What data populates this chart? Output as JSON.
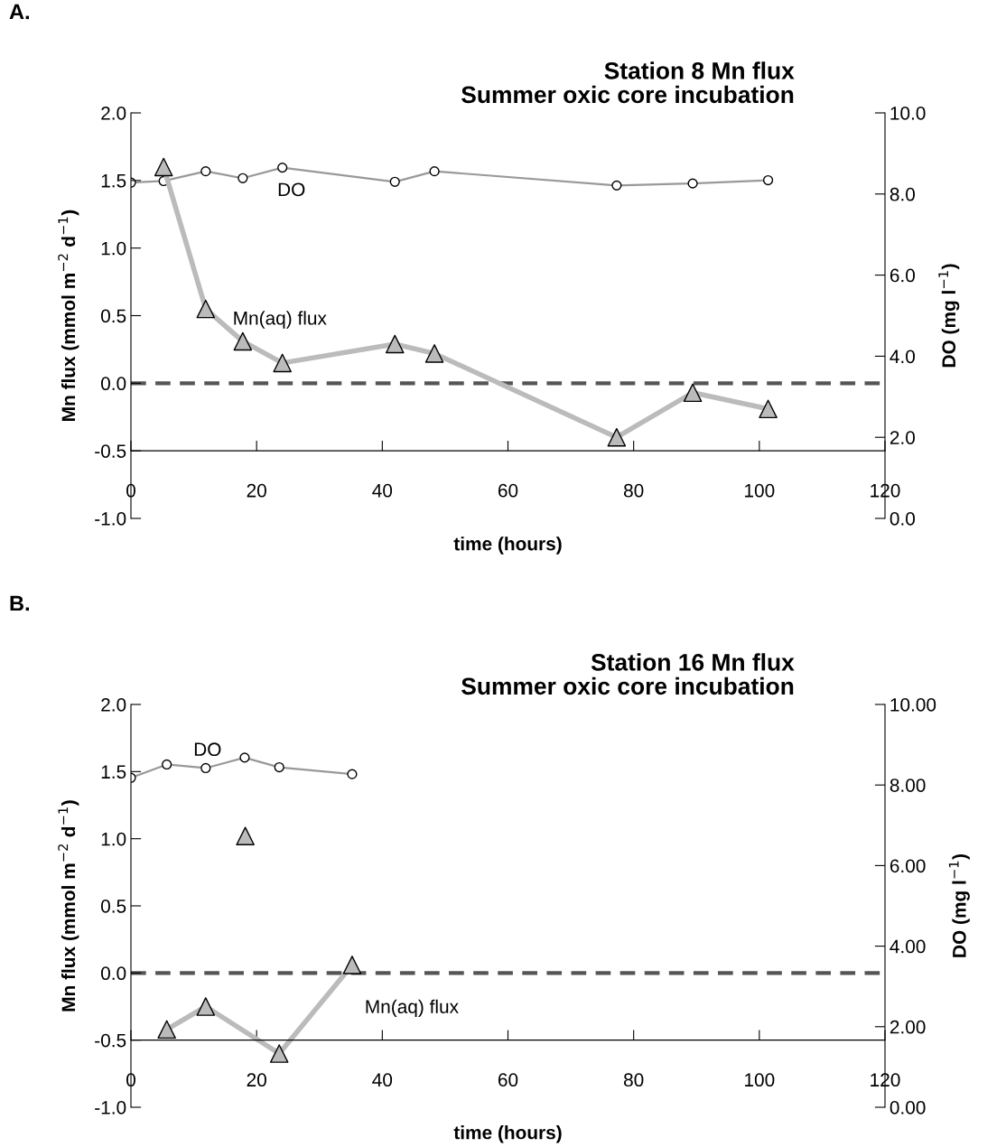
{
  "chart_data": [
    {
      "type": "line",
      "title": "Station 8 Mn flux\nSummer oxic core incubation",
      "xlabel": "time (hours)",
      "ylabel": "Mn flux (mmol m$^{−2}$ d$^{−1}$)",
      "y2label": "DO (mg l$^{−1}$)",
      "xlim": [
        0,
        120
      ],
      "xticks": [
        0,
        20,
        40,
        60,
        80,
        100,
        120
      ],
      "ylim": [
        -1.0,
        2.0
      ],
      "yticks": [
        {
          "value": -1.0,
          "label": "-1.0"
        },
        {
          "value": -0.5,
          "label": "-0.5"
        },
        {
          "value": 0.0,
          "label": "0.0"
        },
        {
          "value": 0.5,
          "label": "0.5"
        },
        {
          "value": 1.0,
          "label": "1.0"
        },
        {
          "value": 1.5,
          "label": "1.5"
        },
        {
          "value": 2.0,
          "label": "2.0"
        }
      ],
      "y2lim": [
        0,
        10
      ],
      "y2ticks": [
        {
          "value": 0,
          "label": "0.0"
        },
        {
          "value": 2,
          "label": "2.0"
        },
        {
          "value": 4,
          "label": "4.0"
        },
        {
          "value": 6,
          "label": "6.0"
        },
        {
          "value": 8,
          "label": "8.0"
        },
        {
          "value": 10,
          "label": "10.0"
        }
      ],
      "grid": false,
      "legend": false,
      "series": [
        {
          "name": "DO",
          "axis": "y2",
          "color": "#999999",
          "marker": "circle",
          "x": [
            0,
            5.2,
            11.9,
            17.8,
            24.1,
            42.0,
            48.3,
            77.3,
            89.4,
            101.4
          ],
          "values": [
            8.28,
            8.32,
            8.56,
            8.39,
            8.65,
            8.3,
            8.56,
            8.21,
            8.26,
            8.34
          ]
        },
        {
          "name": "Mn(aq) flux",
          "color": "#bbbbbb",
          "marker": "triangle",
          "x": [
            5.2,
            11.9,
            17.8,
            24.1,
            42.0,
            48.3,
            77.3,
            89.4,
            101.4
          ],
          "values": [
            1.6,
            0.55,
            0.31,
            0.15,
            0.29,
            0.22,
            -0.4,
            -0.07,
            -0.19
          ]
        }
      ],
      "ref_lines": [
        {
          "axis": "y",
          "value": 0,
          "color": "#555555",
          "line_style": "dashed"
        }
      ],
      "annotations": [
        "A."
      ]
    },
    {
      "type": "line",
      "title": "Station 16 Mn flux\nSummer oxic core incubation",
      "xlabel": "time (hours)",
      "ylabel": "Mn flux (mmol m$^{−2}$ d$^{−1}$)",
      "y2label": "DO (mg l$^{−1}$)",
      "xlim": [
        0,
        120
      ],
      "xticks": [
        0,
        20,
        40,
        60,
        80,
        100,
        120
      ],
      "ylim": [
        -1.0,
        2.0
      ],
      "yticks": [
        {
          "value": -1.0,
          "label": "-1.0"
        },
        {
          "value": -0.5,
          "label": "-0.5"
        },
        {
          "value": 0.0,
          "label": "0.0"
        },
        {
          "value": 0.5,
          "label": "0.5"
        },
        {
          "value": 1.0,
          "label": "1.0"
        },
        {
          "value": 1.5,
          "label": "1.5"
        },
        {
          "value": 2.0,
          "label": "2.0"
        }
      ],
      "y2lim": [
        0,
        10
      ],
      "y2ticks": [
        {
          "value": 0,
          "label": "0.00"
        },
        {
          "value": 2,
          "label": "2.00"
        },
        {
          "value": 4,
          "label": "4.00"
        },
        {
          "value": 6,
          "label": "6.00"
        },
        {
          "value": 8,
          "label": "8.00"
        },
        {
          "value": 10,
          "label": "10.00"
        }
      ],
      "grid": false,
      "legend": false,
      "series": [
        {
          "name": "DO",
          "axis": "y2",
          "color": "#999999",
          "marker": "circle",
          "x": [
            0,
            5.7,
            11.9,
            18.1,
            23.6,
            35.2
          ],
          "values": [
            8.18,
            8.51,
            8.42,
            8.68,
            8.44,
            8.27
          ]
        },
        {
          "name": "Mn(aq) flux",
          "color": "#bbbbbb",
          "marker": "triangle",
          "x": [
            5.7,
            11.9,
            23.6,
            35.2
          ],
          "values": [
            -0.42,
            -0.25,
            -0.6,
            0.06
          ]
        },
        {
          "type": "scatter",
          "color": "#bbbbbb",
          "marker": "triangle",
          "x": [
            18.2
          ],
          "values": [
            1.02
          ]
        }
      ],
      "ref_lines": [
        {
          "axis": "y",
          "value": 0,
          "color": "#555555",
          "line_style": "dashed"
        }
      ],
      "annotations": [
        "B."
      ]
    }
  ]
}
